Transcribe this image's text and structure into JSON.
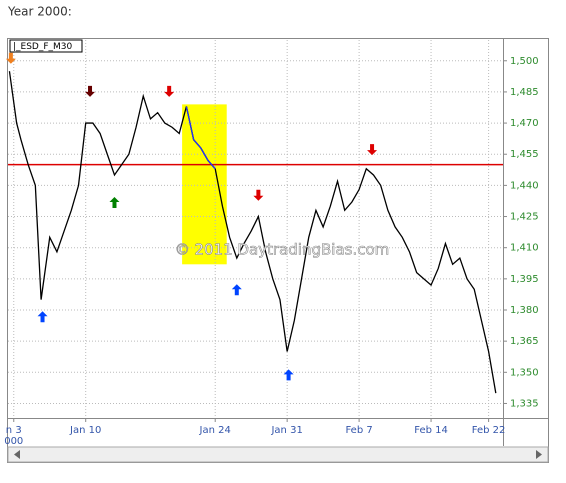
{
  "heading": "Year 2000:",
  "chart_data": {
    "type": "line",
    "symbol": "|_ESD_F_M30",
    "watermark": "© 2011 DaytradingBias.com",
    "x": [
      -0.3,
      0.2,
      0.5,
      1,
      1.5,
      1.9,
      2.5,
      3,
      3.5,
      4,
      4.5,
      5,
      5.5,
      6,
      6.5,
      7,
      7.5,
      8,
      8.5,
      9,
      9.5,
      10,
      10.5,
      11,
      11.5,
      12,
      12.5,
      13,
      13.5,
      14,
      14.5,
      15,
      15.5,
      16,
      16.5,
      17,
      17.5,
      18,
      18.5,
      19,
      19.5,
      20,
      20.5,
      21,
      21.5,
      22,
      22.5,
      23,
      23.5,
      24,
      24.5,
      25,
      25.5,
      26,
      26.5,
      27,
      27.5,
      28,
      28.5,
      29,
      29.5,
      30,
      30.5,
      31,
      31.5,
      32,
      32.5,
      33,
      33.5
    ],
    "series": [
      {
        "color": "#000000",
        "values": [
          1495,
          1470,
          1462,
          1450,
          1440,
          1385,
          1415,
          1408,
          1418,
          1428,
          1440,
          1470,
          1470,
          1465,
          1455,
          1445,
          1450,
          1455,
          1468,
          1483,
          1472,
          1475,
          1470,
          1468,
          1465,
          1478,
          1462,
          1458,
          1452,
          1448,
          1430,
          1415,
          1405,
          1412,
          1418,
          1425,
          1408,
          1395,
          1385,
          1360,
          1375,
          1395,
          1415,
          1428,
          1420,
          1430,
          1442,
          1428,
          1432,
          1438,
          1448,
          1445,
          1440,
          1428,
          1420,
          1415,
          1408,
          1398,
          1395,
          1392,
          1400,
          1412,
          1402,
          1405,
          1395,
          1390,
          1375,
          1360,
          1340
        ]
      },
      {
        "color": "#2233ff",
        "values": [
          null,
          null,
          null,
          null,
          null,
          null,
          null,
          null,
          null,
          null,
          null,
          null,
          null,
          null,
          null,
          null,
          null,
          null,
          null,
          null,
          null,
          null,
          null,
          null,
          null,
          1478,
          1462,
          1458,
          1452,
          1448,
          null,
          null,
          null,
          null,
          null,
          null,
          null,
          null,
          null,
          null,
          null,
          null,
          null,
          null,
          null,
          null,
          null,
          null,
          null,
          null,
          null,
          null,
          null,
          null,
          null,
          null,
          null,
          null,
          null,
          null,
          null,
          null,
          null,
          null,
          null,
          null,
          null,
          null,
          null
        ]
      }
    ],
    "xlim": [
      -0.4,
      34
    ],
    "xticks": [
      {
        "value": 0,
        "label": "n 3"
      },
      {
        "value": 5,
        "label": "Jan 10"
      },
      {
        "value": 14,
        "label": "Jan 24"
      },
      {
        "value": 19,
        "label": "Jan 31"
      },
      {
        "value": 24,
        "label": "Feb 7"
      },
      {
        "value": 29,
        "label": "Feb 14"
      },
      {
        "value": 33,
        "label": "Feb 22"
      }
    ],
    "xsub": "000",
    "ylim": [
      1328,
      1510
    ],
    "yticks": [
      {
        "value": 1335,
        "label": "1,335"
      },
      {
        "value": 1350,
        "label": "1,350"
      },
      {
        "value": 1365,
        "label": "1,365"
      },
      {
        "value": 1380,
        "label": "1,380"
      },
      {
        "value": 1395,
        "label": "1,395"
      },
      {
        "value": 1410,
        "label": "1,410"
      },
      {
        "value": 1425,
        "label": "1,425"
      },
      {
        "value": 1440,
        "label": "1,440"
      },
      {
        "value": 1455,
        "label": "1,455"
      },
      {
        "value": 1470,
        "label": "1,470"
      },
      {
        "value": 1485,
        "label": "1,485"
      },
      {
        "value": 1500,
        "label": "1,500"
      }
    ],
    "grid": true,
    "hline": {
      "value": 1450,
      "color": "#dd0000"
    },
    "highlight_box": {
      "x": [
        11.7,
        14.8
      ],
      "y": [
        1402,
        1479
      ],
      "color": "#ffff00"
    },
    "arrows": [
      {
        "x": -0.2,
        "y": 1501,
        "direction": "down",
        "color": "#f08020"
      },
      {
        "x": 5.3,
        "y": 1485,
        "direction": "down",
        "color": "#660000"
      },
      {
        "x": 7.0,
        "y": 1432,
        "direction": "up",
        "color": "#008000"
      },
      {
        "x": 10.8,
        "y": 1485,
        "direction": "down",
        "color": "#dd0000"
      },
      {
        "x": 17.0,
        "y": 1435,
        "direction": "down",
        "color": "#dd0000"
      },
      {
        "x": 2.0,
        "y": 1377,
        "direction": "up",
        "color": "#0044ff"
      },
      {
        "x": 15.5,
        "y": 1390,
        "direction": "up",
        "color": "#0044ff"
      },
      {
        "x": 19.1,
        "y": 1349,
        "direction": "up",
        "color": "#0044ff"
      },
      {
        "x": 24.9,
        "y": 1457,
        "direction": "down",
        "color": "#dd0000"
      }
    ]
  }
}
